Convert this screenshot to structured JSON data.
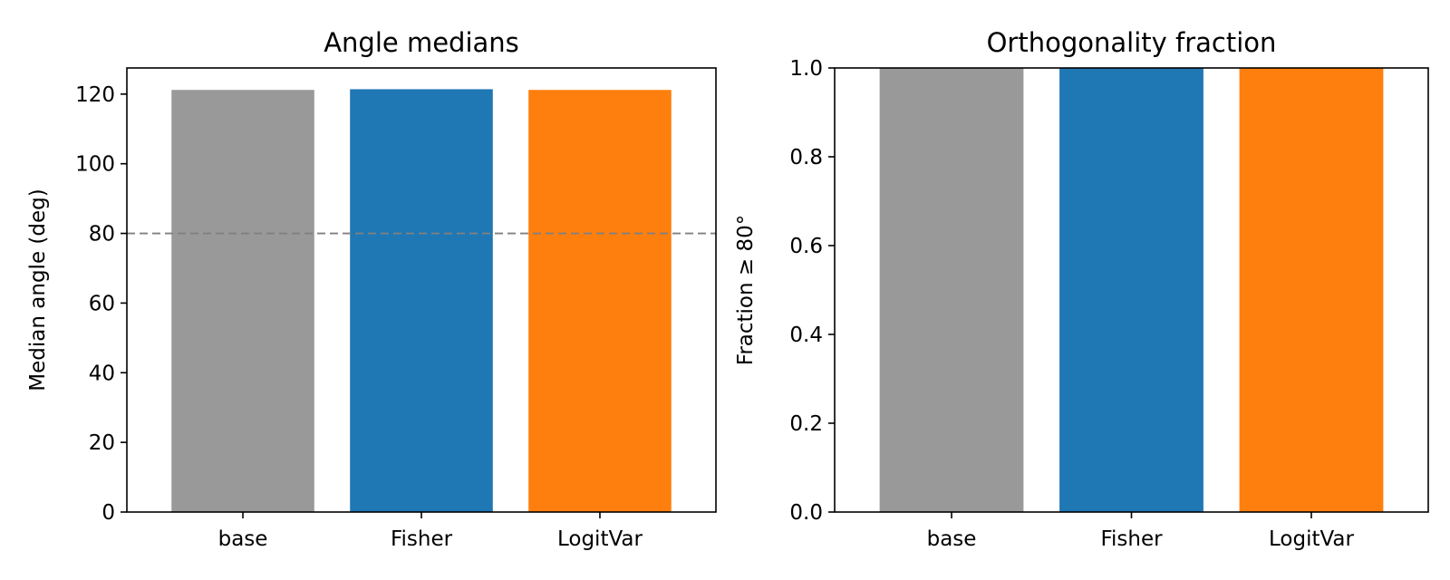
{
  "chart_data": [
    {
      "type": "bar",
      "title": "Angle medians",
      "xlabel": "",
      "ylabel": "Median angle (deg)",
      "categories": [
        "base",
        "Fisher",
        "LogitVar"
      ],
      "values": [
        121.2,
        121.4,
        121.2
      ],
      "colors": [
        "#999999",
        "#1f77b4",
        "#ff7f0e"
      ],
      "ylim": [
        0,
        127.5
      ],
      "yticks": [
        0,
        20,
        40,
        60,
        80,
        100,
        120
      ],
      "ytick_labels": [
        "0",
        "20",
        "40",
        "60",
        "80",
        "100",
        "120"
      ],
      "reference_line": {
        "y": 80,
        "style": "dashed",
        "color": "#808080"
      },
      "grid": false
    },
    {
      "type": "bar",
      "title": "Orthogonality fraction",
      "xlabel": "",
      "ylabel": "Fraction ≥ 80°",
      "categories": [
        "base",
        "Fisher",
        "LogitVar"
      ],
      "values": [
        1.0,
        1.0,
        1.0
      ],
      "colors": [
        "#999999",
        "#1f77b4",
        "#ff7f0e"
      ],
      "ylim": [
        0,
        1.0
      ],
      "yticks": [
        0,
        0.2,
        0.4,
        0.6,
        0.8,
        1.0
      ],
      "ytick_labels": [
        "0.0",
        "0.2",
        "0.4",
        "0.6",
        "0.8",
        "1.0"
      ],
      "grid": false
    }
  ]
}
